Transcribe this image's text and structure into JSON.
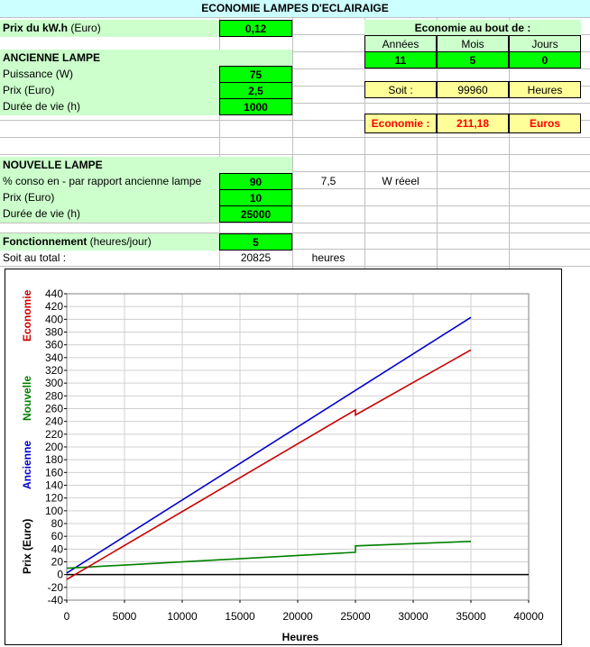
{
  "title": "ECONOMIE LAMPES D'ECLAIRAIGE",
  "prix_kwh": {
    "label_bold": "Prix du kW.h",
    "label_rest": " (Euro)",
    "value": "0,12"
  },
  "ancienne": {
    "header": "ANCIENNE LAMPE",
    "rows": [
      {
        "label": "Puissance (W)",
        "value": "75"
      },
      {
        "label": "Prix (Euro)",
        "value": "2,5"
      },
      {
        "label": "Durée de vie (h)",
        "value": "1000"
      }
    ]
  },
  "economie_bout": {
    "header": "Economie au bout de :",
    "columns": [
      "Années",
      "Mois",
      "Jours"
    ],
    "values": [
      "11",
      "5",
      "0"
    ]
  },
  "soit": {
    "label": "Soit :",
    "value": "99960",
    "unit": "Heures"
  },
  "economie": {
    "label": "Economie :",
    "value": "211,18",
    "unit": "Euros"
  },
  "nouvelle": {
    "header": "NOUVELLE LAMPE",
    "rows": [
      {
        "label": "% conso en - par rapport ancienne lampe",
        "value": "90",
        "extra": "7,5",
        "extra_unit": "W réeel"
      },
      {
        "label": "Prix (Euro)",
        "value": "10"
      },
      {
        "label": "Durée de vie (h)",
        "value": "25000"
      }
    ]
  },
  "fonctionnement": {
    "label_bold": "Fonctionnement",
    "label_rest": " (heures/jour)",
    "value": "5"
  },
  "total": {
    "label": "Soit au total :",
    "value": "20825",
    "unit": "heures"
  },
  "colors": {
    "ancienne": "#0000cc",
    "nouvelle": "#008000",
    "economie": "#cc0000"
  },
  "chart_data": {
    "type": "line",
    "xlabel": "Heures",
    "ylabel": "Prix (Euro)",
    "xlim": [
      0,
      40000
    ],
    "ylim": [
      -40,
      440
    ],
    "x_ticks": [
      0,
      5000,
      10000,
      15000,
      20000,
      25000,
      30000,
      35000,
      40000
    ],
    "y_ticks": [
      -40,
      -20,
      0,
      20,
      40,
      60,
      80,
      100,
      120,
      140,
      160,
      180,
      200,
      220,
      240,
      260,
      280,
      300,
      320,
      340,
      360,
      380,
      400,
      420,
      440
    ],
    "x_tick_labels": [
      "0",
      "5000",
      "10000",
      "15000",
      "20000",
      "25000",
      "30000",
      "35000",
      "40000"
    ],
    "y_tick_labels": [
      "-40",
      "-20",
      "0",
      "20",
      "40",
      "60",
      "80",
      "100",
      "120",
      "140",
      "160",
      "180",
      "200",
      "220",
      "240",
      "260",
      "280",
      "300",
      "320",
      "340",
      "360",
      "380",
      "400",
      "420",
      "440"
    ],
    "series": [
      {
        "name": "Ancienne",
        "color": "#0000cc",
        "x": [
          0,
          35000
        ],
        "y": [
          2.5,
          403
        ]
      },
      {
        "name": "Nouvelle",
        "color": "#008000",
        "x": [
          0,
          24999,
          25000,
          35000
        ],
        "y": [
          10,
          35,
          45,
          52
        ]
      },
      {
        "name": "Economie",
        "color": "#cc0000",
        "x": [
          0,
          24999,
          25000,
          35000
        ],
        "y": [
          -7.5,
          258,
          250,
          352
        ]
      }
    ],
    "zero_line": 0
  }
}
